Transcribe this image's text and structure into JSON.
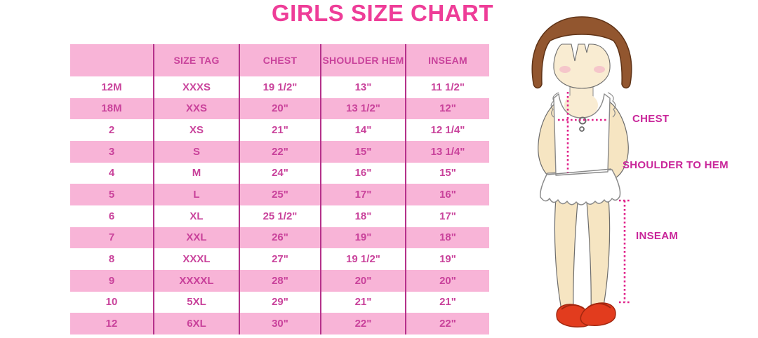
{
  "title": "GIRLS SIZE CHART",
  "chart_data": {
    "type": "table",
    "title": "GIRLS SIZE CHART",
    "columns": [
      "",
      "SIZE TAG",
      "CHEST",
      "SHOULDER HEM",
      "INSEAM"
    ],
    "rows": [
      [
        "12M",
        "XXXS",
        "19 1/2\"",
        "13\"",
        "11 1/2\""
      ],
      [
        "18M",
        "XXS",
        "20\"",
        "13 1/2\"",
        "12\""
      ],
      [
        "2",
        "XS",
        "21\"",
        "14\"",
        "12 1/4\""
      ],
      [
        "3",
        "S",
        "22\"",
        "15\"",
        "13 1/4\""
      ],
      [
        "4",
        "M",
        "24\"",
        "16\"",
        "15\""
      ],
      [
        "5",
        "L",
        "25\"",
        "17\"",
        "16\""
      ],
      [
        "6",
        "XL",
        "25 1/2\"",
        "18\"",
        "17\""
      ],
      [
        "7",
        "XXL",
        "26\"",
        "19\"",
        "18\""
      ],
      [
        "8",
        "XXXL",
        "27\"",
        "19 1/2\"",
        "19\""
      ],
      [
        "9",
        "XXXXL",
        "28\"",
        "20\"",
        "20\""
      ],
      [
        "10",
        "5XL",
        "29\"",
        "21\"",
        "21\""
      ],
      [
        "12",
        "6XL",
        "30\"",
        "22\"",
        "22\""
      ]
    ],
    "row_striping": "white and pink alternating, header pink",
    "legend_position": "none",
    "grid": "vertical magenta column dividers only"
  },
  "diagram": {
    "labels": {
      "chest": "CHEST",
      "shoulder_to_hem": "SHOULDER TO HEM",
      "inseam": "INSEAM"
    }
  },
  "colors": {
    "title_pink": "#ee3d98",
    "row_pink": "#f8b4d7",
    "divider_magenta": "#b5318a",
    "cell_text": "#c9429b",
    "label_magenta": "#c9269a",
    "dotted_line": "#e0218a",
    "hair_brown": "#92562f",
    "hair_outline": "#5f3317",
    "skin": "#f9ecd2",
    "limb_skin": "#f6e5c2",
    "blush_pink": "#f5c6ca",
    "shoe_red": "#e23c1e",
    "shoe_outline": "#a3270f",
    "outline_gray": "#8a8a8a"
  }
}
